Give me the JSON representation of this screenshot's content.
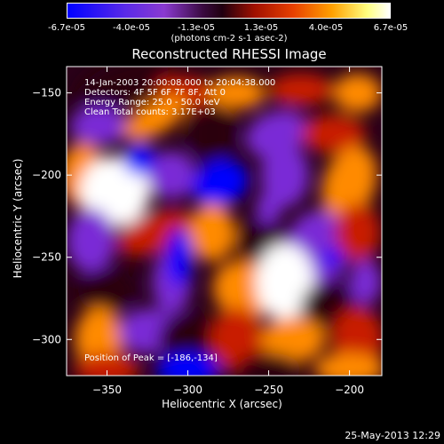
{
  "chart_data": {
    "type": "heatmap",
    "title": "Reconstructed RHESSI Image",
    "xlabel": "Heliocentric X (arcsec)",
    "ylabel": "Heliocentric Y (arcsec)",
    "xlim": [
      -375,
      -180
    ],
    "ylim": [
      -322,
      -134
    ],
    "xticks": [
      -350,
      -300,
      -250,
      -200
    ],
    "yticks": [
      -150,
      -200,
      -250,
      -300
    ],
    "colorbar": {
      "range": [
        -6.7e-05,
        6.7e-05
      ],
      "tick_labels": [
        "-6.7e-05",
        "-4.0e-05",
        "-1.3e-05",
        "1.3e-05",
        "4.0e-05",
        "6.7e-05"
      ],
      "units": "(photons cm-2 s-1 asec-2)",
      "colors": [
        "#0000ff",
        "#7a2bd6",
        "#2a0010",
        "#c81e00",
        "#ff8a00",
        "#ffffff"
      ]
    },
    "annotations": {
      "time": "14-Jan-2003 20:00:08.000 to 20:04:38.000",
      "detectors": "Detectors: 4F 5F 6F 7F 8F, Att 0",
      "energy": "Energy Range: 25.0 - 50.0 keV",
      "clean": "Clean     Total counts: 3.17E+03",
      "peak": "Position of Peak = [-186,-134]"
    },
    "peak_position": [
      -186,
      -134
    ],
    "total_counts": 3170,
    "energy_range_kev": [
      25.0,
      50.0
    ],
    "grid": false
  },
  "footer": {
    "timestamp": "25-May-2013 12:29"
  }
}
